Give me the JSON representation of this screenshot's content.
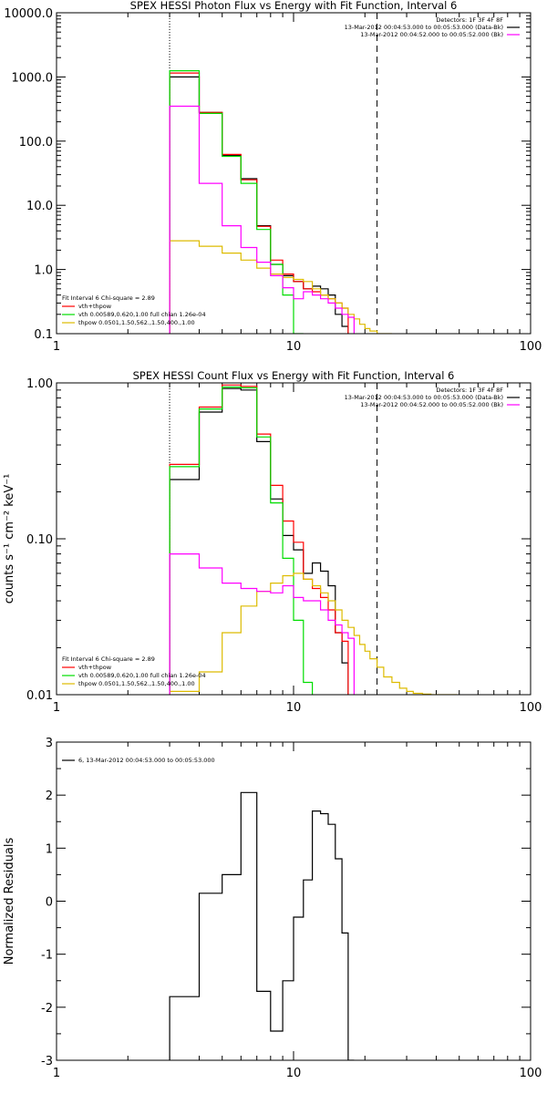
{
  "chart_data": [
    {
      "type": "line",
      "title": "SPEX HESSI Photon Flux vs Energy with Fit Function, Interval 6",
      "xscale": "log",
      "yscale": "log",
      "xlim": [
        1,
        100
      ],
      "ylim": [
        0.1,
        10000
      ],
      "xticks": [
        {
          "v": 1,
          "label": "1"
        },
        {
          "v": 10,
          "label": "10"
        },
        {
          "v": 100,
          "label": "100"
        }
      ],
      "yticks": [
        {
          "v": 0.1,
          "label": "0.1"
        },
        {
          "v": 1,
          "label": "1.0"
        },
        {
          "v": 10,
          "label": "10.0"
        },
        {
          "v": 100,
          "label": "100.0"
        },
        {
          "v": 1000,
          "label": "1000.0"
        },
        {
          "v": 10000,
          "label": "10000.0"
        }
      ],
      "xlabel": "",
      "ylabel": "",
      "vlines": [
        {
          "x": 3,
          "style": "dotted"
        },
        {
          "x": 22.5,
          "style": "dashed"
        }
      ],
      "header_right": [
        "Detectors: 1F 3F 4F 8F",
        "13-Mar-2012 00:04:53.000 to 00:05:53.000 (Data-Bk)",
        "13-Mar-2012 00:04:52.000 to 00:05:52.000 (Bk)"
      ],
      "header_colors": [
        "",
        "#000000",
        "#ff00ff"
      ],
      "legend_left": [
        {
          "text": "Fit Interval 6   Chi-square = 2.89",
          "color": ""
        },
        {
          "text": "vth+thpow",
          "color": "#ff0000"
        },
        {
          "text": "vth 0.00589,0.620,1.00  full chian 1.26e-04",
          "color": "#00dd00"
        },
        {
          "text": "thpow 0.0501,1.50,562.,1.50,400.,1.00",
          "color": "#ddbb00"
        }
      ],
      "edges": [
        3,
        3.5,
        4,
        4.5,
        5,
        5.5,
        6,
        6.5,
        7,
        7.5,
        8,
        8.5,
        9,
        9.5,
        10,
        11,
        12,
        13,
        14,
        15,
        16,
        17,
        18,
        19,
        20,
        21,
        22.5,
        24,
        26,
        28,
        30
      ],
      "series": [
        {
          "name": "data",
          "color": "#000000",
          "values": [
            1000,
            1000,
            280,
            280,
            60,
            60,
            26,
            26,
            4.8,
            4.8,
            1.2,
            1.2,
            0.8,
            0.8,
            0.65,
            0.5,
            0.55,
            0.5,
            0.4,
            0.2,
            0.13
          ]
        },
        {
          "name": "vth+thpow",
          "color": "#ff0000",
          "values": [
            1150,
            1150,
            280,
            280,
            62,
            62,
            25,
            25,
            4.7,
            4.7,
            1.4,
            1.4,
            0.85,
            0.85,
            0.65,
            0.5,
            0.45,
            0.4,
            0.35,
            0.3,
            0.25
          ]
        },
        {
          "name": "vth",
          "color": "#00dd00",
          "values": [
            1250,
            1250,
            270,
            270,
            58,
            58,
            22,
            22,
            4.2,
            4.2,
            1.2,
            1.2,
            0.4,
            0.4,
            0.1
          ]
        },
        {
          "name": "thpow",
          "color": "#ddbb00",
          "values": [
            2.8,
            2.8,
            2.3,
            2.3,
            1.8,
            1.8,
            1.4,
            1.4,
            1.05,
            1.05,
            0.85,
            0.85,
            0.75,
            0.75,
            0.7,
            0.65,
            0.5,
            0.4,
            0.35,
            0.3,
            0.25,
            0.2,
            0.17,
            0.14,
            0.12,
            0.11,
            0.1,
            0.1
          ]
        },
        {
          "name": "background",
          "color": "#ff00ff",
          "values": [
            350,
            350,
            22,
            22,
            4.8,
            4.8,
            2.2,
            2.2,
            1.3,
            1.3,
            0.8,
            0.8,
            0.52,
            0.52,
            0.35,
            0.45,
            0.4,
            0.35,
            0.3,
            0.25,
            0.2,
            0.18
          ]
        }
      ]
    },
    {
      "type": "line",
      "title": "SPEX HESSI Count Flux vs Energy with Fit Function, Interval 6",
      "xscale": "log",
      "yscale": "log",
      "xlim": [
        1,
        100
      ],
      "ylim": [
        0.01,
        1
      ],
      "xticks": [
        {
          "v": 1,
          "label": "1"
        },
        {
          "v": 10,
          "label": "10"
        },
        {
          "v": 100,
          "label": "100"
        }
      ],
      "yticks": [
        {
          "v": 0.01,
          "label": "0.01"
        },
        {
          "v": 0.1,
          "label": "0.10"
        },
        {
          "v": 1,
          "label": "1.00"
        }
      ],
      "xlabel": "",
      "ylabel": "counts s⁻¹ cm⁻² keV⁻¹",
      "vlines": [
        {
          "x": 3,
          "style": "dotted"
        },
        {
          "x": 22.5,
          "style": "dashed"
        }
      ],
      "header_right": [
        "Detectors: 1F 3F 4F 8F",
        "13-Mar-2012 00:04:53.000 to 00:05:53.000 (Data-Bk)",
        "13-Mar-2012 00:04:52.000 to 00:05:52.000 (Bk)"
      ],
      "header_colors": [
        "",
        "#000000",
        "#ff00ff"
      ],
      "legend_left": [
        {
          "text": "Fit Interval 6   Chi-square = 2.89",
          "color": ""
        },
        {
          "text": "vth+thpow",
          "color": "#ff0000"
        },
        {
          "text": "vth 0.00589,0.620,1.00  full chian 1.26e-04",
          "color": "#00dd00"
        },
        {
          "text": "thpow 0.0501,1.50,562.,1.50,400.,1.00",
          "color": "#ddbb00"
        }
      ],
      "edges": [
        3,
        3.5,
        4,
        4.5,
        5,
        5.5,
        6,
        6.5,
        7,
        7.5,
        8,
        8.5,
        9,
        9.5,
        10,
        11,
        12,
        13,
        14,
        15,
        16,
        17,
        18,
        19,
        20,
        21,
        22.5,
        24,
        26,
        28,
        30,
        32,
        35,
        38,
        41,
        45,
        49
      ],
      "series": [
        {
          "name": "data",
          "color": "#000000",
          "values": [
            0.24,
            0.24,
            0.65,
            0.65,
            0.92,
            0.92,
            0.9,
            0.9,
            0.42,
            0.42,
            0.18,
            0.18,
            0.105,
            0.105,
            0.085,
            0.06,
            0.07,
            0.062,
            0.05,
            0.025,
            0.016
          ]
        },
        {
          "name": "vth+thpow",
          "color": "#ff0000",
          "values": [
            0.3,
            0.3,
            0.7,
            0.7,
            0.97,
            0.97,
            0.95,
            0.95,
            0.47,
            0.47,
            0.22,
            0.22,
            0.13,
            0.13,
            0.095,
            0.055,
            0.048,
            0.042,
            0.035,
            0.025,
            0.022
          ]
        },
        {
          "name": "vth",
          "color": "#00dd00",
          "values": [
            0.29,
            0.29,
            0.68,
            0.68,
            0.94,
            0.94,
            0.93,
            0.93,
            0.45,
            0.45,
            0.17,
            0.17,
            0.075,
            0.075,
            0.03,
            0.012
          ]
        },
        {
          "name": "thpow",
          "color": "#ddbb00",
          "values": [
            0.0105,
            0.0105,
            0.014,
            0.014,
            0.025,
            0.025,
            0.037,
            0.037,
            0.046,
            0.046,
            0.052,
            0.052,
            0.058,
            0.058,
            0.06,
            0.055,
            0.05,
            0.045,
            0.04,
            0.035,
            0.03,
            0.027,
            0.024,
            0.021,
            0.019,
            0.017,
            0.015,
            0.013,
            0.012,
            0.011,
            0.0105,
            0.0102,
            0.0101,
            0.01,
            0.01,
            0.01
          ]
        },
        {
          "name": "background",
          "color": "#ff00ff",
          "values": [
            0.08,
            0.08,
            0.065,
            0.065,
            0.052,
            0.052,
            0.048,
            0.048,
            0.046,
            0.046,
            0.045,
            0.045,
            0.05,
            0.05,
            0.042,
            0.04,
            0.04,
            0.035,
            0.03,
            0.028,
            0.025,
            0.023
          ]
        }
      ]
    },
    {
      "type": "line",
      "title": "",
      "xscale": "log",
      "yscale": "linear",
      "xlim": [
        1,
        100
      ],
      "ylim": [
        -3,
        3
      ],
      "xticks": [
        {
          "v": 1,
          "label": "1"
        },
        {
          "v": 10,
          "label": "10"
        },
        {
          "v": 100,
          "label": "100"
        }
      ],
      "yticks": [
        {
          "v": -3,
          "label": "-3"
        },
        {
          "v": -2,
          "label": "-2"
        },
        {
          "v": -1,
          "label": "-1"
        },
        {
          "v": 0,
          "label": "0"
        },
        {
          "v": 1,
          "label": "1"
        },
        {
          "v": 2,
          "label": "2"
        },
        {
          "v": 3,
          "label": "3"
        }
      ],
      "xlabel": "",
      "ylabel": "Normalized Residuals",
      "vlines": [],
      "header_right": [],
      "header_colors": [],
      "legend_left": [
        {
          "text": "6, 13-Mar-2012 00:04:53.000 to 00:05:53.000",
          "color": "#000000"
        }
      ],
      "edges": [
        3,
        3.5,
        4,
        4.5,
        5,
        5.5,
        6,
        6.5,
        7,
        7.5,
        8,
        8.5,
        9,
        9.5,
        10,
        11,
        12,
        13,
        14,
        15,
        16,
        17,
        18,
        19,
        20,
        21,
        22.5
      ],
      "series": [
        {
          "name": "residuals",
          "color": "#000000",
          "values": [
            -1.8,
            -1.8,
            0.15,
            0.15,
            0.5,
            0.5,
            2.05,
            2.05,
            -1.7,
            -1.7,
            -2.45,
            -2.45,
            -1.5,
            -1.5,
            -0.3,
            0.4,
            1.7,
            1.65,
            1.45,
            0.8,
            -0.6,
            -3.1
          ]
        }
      ]
    }
  ]
}
